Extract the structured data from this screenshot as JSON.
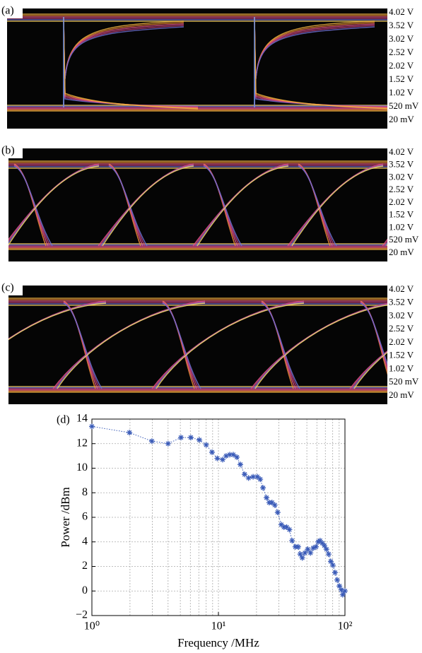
{
  "panels": [
    {
      "label": "(a)",
      "voltage_labels": [
        "4.02 V",
        "3.52 V",
        "3.02 V",
        "2.52 V",
        "2.02 V",
        "1.52 V",
        "1.02 V",
        "520 mV",
        "20 mV"
      ]
    },
    {
      "label": "(b)",
      "voltage_labels": [
        "4.02 V",
        "3.52 V",
        "3.02 V",
        "2.52 V",
        "2.02 V",
        "1.52 V",
        "1.02 V",
        "520 mV",
        "20 mV"
      ]
    },
    {
      "label": "(c)",
      "voltage_labels": [
        "4.02 V",
        "3.52 V",
        "3.02 V",
        "2.52 V",
        "2.02 V",
        "1.52 V",
        "1.02 V",
        "520 mV",
        "20 mV"
      ]
    }
  ],
  "chart_data": {
    "type": "scatter",
    "panel_label": "(d)",
    "x_label": "Frequency /MHz",
    "y_label": "Power /dBm",
    "x": [
      1,
      1.98,
      2.98,
      4.0,
      5.06,
      6.05,
      7.07,
      8.0,
      8.9,
      9.8,
      10.8,
      11.5,
      12.3,
      13.1,
      14.0,
      14.9,
      16.1,
      17.3,
      18.8,
      20.3,
      21.4,
      22.5,
      24.0,
      25.2,
      26.5,
      27.9,
      29.4,
      31.4,
      32.9,
      34.6,
      36.4,
      38.2,
      40.6,
      42.7,
      44.3,
      46.0,
      48.3,
      50.8,
      53.4,
      56.2,
      59.0,
      61.4,
      63.6,
      66.2,
      68.8,
      71.4,
      74.3,
      77.3,
      80.3,
      83.5,
      86.8,
      90.4,
      93.6,
      96.0,
      100
    ],
    "values": [
      13.4,
      12.9,
      12.2,
      12.0,
      12.5,
      12.5,
      12.3,
      11.9,
      11.3,
      10.8,
      10.7,
      11.0,
      11.1,
      11.1,
      10.9,
      10.3,
      9.5,
      9.2,
      9.3,
      9.3,
      9.1,
      8.4,
      7.6,
      7.2,
      7.2,
      7.0,
      6.4,
      5.4,
      5.2,
      5.2,
      5.0,
      4.1,
      3.6,
      3.6,
      3.0,
      2.7,
      3.1,
      3.4,
      3.1,
      3.5,
      3.6,
      4.0,
      4.1,
      3.9,
      3.7,
      3.4,
      3.0,
      2.4,
      2.1,
      1.5,
      0.9,
      0.4,
      0.1,
      -0.3,
      0.0
    ],
    "color": "#3a5bb8",
    "connect": true,
    "x_scale": "log",
    "grid": true,
    "xlim": [
      1,
      100
    ],
    "ylim": [
      -2,
      14
    ],
    "xticks": [
      {
        "value": 1,
        "label": "10⁰"
      },
      {
        "value": 10,
        "label": "10¹"
      },
      {
        "value": 100,
        "label": "10²"
      }
    ],
    "yticks": [
      {
        "value": -2,
        "label": "−2"
      },
      0,
      2,
      4,
      6,
      8,
      10,
      12,
      14
    ]
  }
}
